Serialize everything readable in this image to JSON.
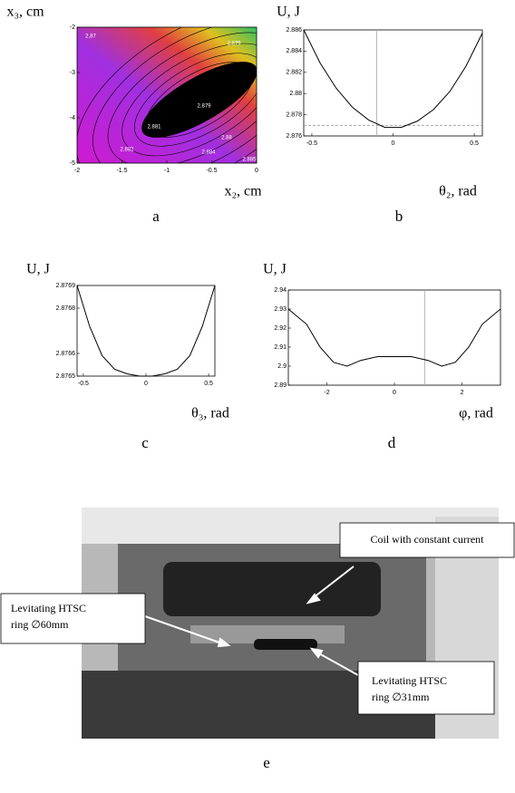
{
  "chart_data": [
    {
      "type": "contour",
      "ylabel": "x₃, cm",
      "xlabel": "x₂, cm",
      "panel": "a",
      "xlim": [
        -2,
        0
      ],
      "ylim": [
        -5,
        -2
      ],
      "xticks": [
        -2,
        -1.5,
        -1,
        -0.5,
        0
      ],
      "yticks": [
        -2,
        -3,
        -4,
        -5
      ],
      "annotations": [
        "2.879",
        "2.879",
        "2.88",
        "2.881",
        "2.882",
        "2.884",
        "2.885",
        "2.87"
      ]
    },
    {
      "type": "line",
      "ylabel": "U, J",
      "xlabel": "θ₂, rad",
      "panel": "b",
      "xlim": [
        -0.55,
        0.55
      ],
      "ylim": [
        2.876,
        2.886
      ],
      "xticks": [
        -0.5,
        0,
        0.5
      ],
      "yticks": [
        2.876,
        2.878,
        2.88,
        2.882,
        2.884,
        2.886
      ],
      "x": [
        -0.55,
        -0.45,
        -0.35,
        -0.25,
        -0.15,
        -0.05,
        0.05,
        0.15,
        0.25,
        0.35,
        0.45,
        0.55
      ],
      "values": [
        2.886,
        2.8829,
        2.8805,
        2.8787,
        2.8775,
        2.8768,
        2.8768,
        2.8774,
        2.8785,
        2.8802,
        2.8826,
        2.8857
      ],
      "vline": -0.1,
      "hline": 2.877
    },
    {
      "type": "line",
      "ylabel": "U, J",
      "xlabel": "θ₃, rad",
      "panel": "c",
      "xlim": [
        -0.55,
        0.55
      ],
      "ylim": [
        2.8765,
        2.8769
      ],
      "xticks": [
        -0.5,
        0,
        0.5
      ],
      "yticks": [
        2.8765,
        2.8766,
        2.8768,
        2.8769
      ],
      "x": [
        -0.55,
        -0.45,
        -0.35,
        -0.25,
        -0.15,
        -0.05,
        0.05,
        0.15,
        0.25,
        0.35,
        0.45,
        0.55
      ],
      "values": [
        2.8769,
        2.87672,
        2.87659,
        2.87653,
        2.87651,
        2.8765,
        2.8765,
        2.87651,
        2.87653,
        2.87659,
        2.87672,
        2.8769
      ]
    },
    {
      "type": "line",
      "ylabel": "U, J",
      "xlabel": "φ, rad",
      "panel": "d",
      "xlim": [
        -3.14,
        3.14
      ],
      "ylim": [
        2.89,
        2.94
      ],
      "xticks": [
        -2,
        0,
        2
      ],
      "yticks": [
        2.89,
        2.9,
        2.91,
        2.92,
        2.93,
        2.94
      ],
      "x": [
        -3.14,
        -2.6,
        -2.2,
        -1.8,
        -1.4,
        -1,
        -0.5,
        0,
        0.5,
        1,
        1.4,
        1.8,
        2.2,
        2.6,
        3.14
      ],
      "values": [
        2.93,
        2.922,
        2.91,
        2.902,
        2.9,
        2.903,
        2.905,
        2.905,
        2.905,
        2.903,
        2.9,
        2.902,
        2.91,
        2.922,
        2.93
      ],
      "vline": 0.9
    }
  ],
  "photo": {
    "panel": "e",
    "callouts": [
      [
        "Coil with constant current"
      ],
      [
        "Levitating HTSC",
        "ring ∅60mm"
      ],
      [
        "Levitating HTSC",
        "ring ∅31mm"
      ]
    ]
  }
}
